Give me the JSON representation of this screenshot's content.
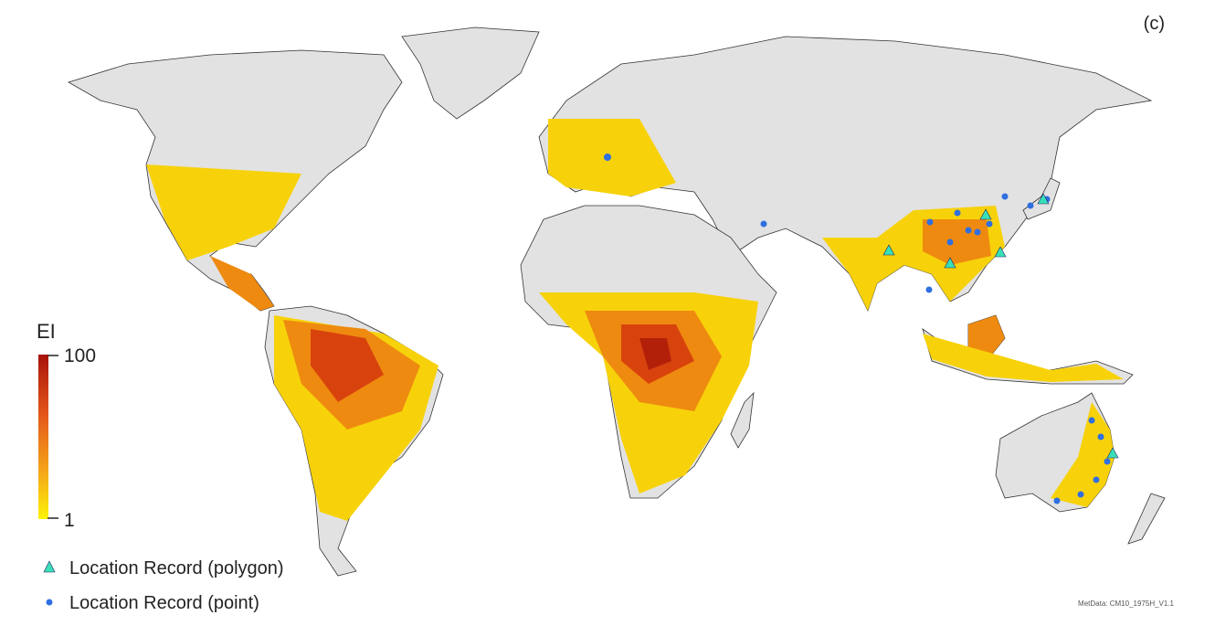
{
  "corner_label": "(c)",
  "legend": {
    "title": "EI",
    "max": 100,
    "min": 1,
    "items": [
      {
        "label": "Location Record (polygon)"
      },
      {
        "label": "Location Record (point)"
      }
    ]
  },
  "footer": "MetData: CM10_1975H_V1.1"
}
